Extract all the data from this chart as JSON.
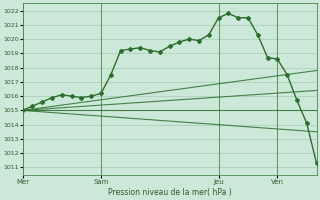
{
  "background_color": "#cce8d8",
  "grid_color": "#aaccb8",
  "line_color": "#2d6e2d",
  "title": "Pression niveau de la mer( hPa )",
  "ylim": [
    1010.5,
    1022.5
  ],
  "yticks": [
    1011,
    1012,
    1013,
    1014,
    1015,
    1016,
    1017,
    1018,
    1019,
    1020,
    1021,
    1022
  ],
  "day_labels": [
    "Mer",
    "Sam",
    "Jeu",
    "Ven"
  ],
  "day_positions": [
    0,
    8,
    20,
    26
  ],
  "vline_positions": [
    0,
    8,
    20,
    26
  ],
  "xlim": [
    0,
    30
  ],
  "main_series": {
    "x": [
      0,
      1,
      2,
      3,
      4,
      5,
      6,
      7,
      8,
      9,
      10,
      11,
      12,
      13,
      14,
      15,
      16,
      17,
      18,
      19,
      20,
      21,
      22,
      23,
      24,
      25,
      26,
      27,
      28,
      29,
      30
    ],
    "y": [
      1015.0,
      1015.3,
      1015.6,
      1015.9,
      1016.1,
      1016.0,
      1015.9,
      1016.0,
      1016.2,
      1017.5,
      1019.2,
      1019.3,
      1019.4,
      1019.2,
      1019.1,
      1019.5,
      1019.8,
      1020.0,
      1019.9,
      1020.3,
      1021.5,
      1021.8,
      1021.5,
      1021.5,
      1020.3,
      1018.7,
      1018.6,
      1017.5,
      1015.7,
      1014.1,
      1011.3
    ],
    "marker": "D",
    "markersize": 2.0,
    "linewidth": 1.0
  },
  "fan_lines": [
    {
      "x": [
        0,
        30
      ],
      "y": [
        1015.0,
        1017.8
      ],
      "linewidth": 0.8
    },
    {
      "x": [
        0,
        30
      ],
      "y": [
        1015.0,
        1016.4
      ],
      "linewidth": 0.8
    },
    {
      "x": [
        0,
        30
      ],
      "y": [
        1015.0,
        1015.0
      ],
      "linewidth": 0.8
    },
    {
      "x": [
        0,
        30
      ],
      "y": [
        1015.0,
        1013.5
      ],
      "linewidth": 0.8
    }
  ]
}
